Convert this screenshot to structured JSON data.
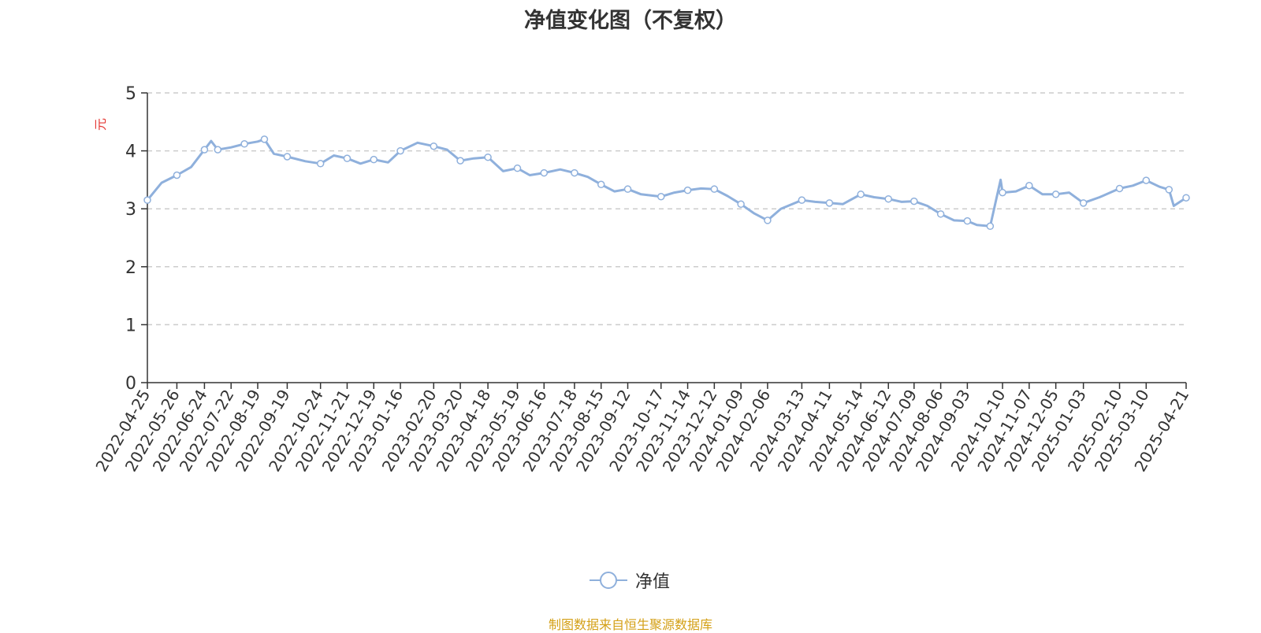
{
  "chart_data": {
    "type": "line",
    "title": "净值变化图（不复权）",
    "ylabel": "元",
    "ylim": [
      0,
      5
    ],
    "yticks": [
      "0",
      "1",
      "2",
      "3",
      "4",
      "5"
    ],
    "grid": true,
    "legend_placement": "bottom-center",
    "xticks": [
      "2022-04-25",
      "2022-05-26",
      "2022-06-24",
      "2022-07-22",
      "2022-08-19",
      "2022-09-19",
      "2022-10-24",
      "2022-11-21",
      "2022-12-19",
      "2023-01-16",
      "2023-02-20",
      "2023-03-20",
      "2023-04-18",
      "2023-05-19",
      "2023-06-16",
      "2023-07-18",
      "2023-08-15",
      "2023-09-12",
      "2023-10-17",
      "2023-11-14",
      "2023-12-12",
      "2024-01-09",
      "2024-02-06",
      "2024-03-13",
      "2024-04-11",
      "2024-05-14",
      "2024-06-12",
      "2024-07-09",
      "2024-08-06",
      "2024-09-03",
      "2024-10-10",
      "2024-11-07",
      "2024-12-05",
      "2025-01-03",
      "2025-02-10",
      "2025-03-10",
      "2025-04-21"
    ],
    "series": [
      {
        "name": "净值",
        "color": "#8fb0dc",
        "x": [
          "2022-04-25",
          "2022-05-10",
          "2022-05-26",
          "2022-06-10",
          "2022-06-24",
          "2022-07-01",
          "2022-07-08",
          "2022-07-22",
          "2022-08-05",
          "2022-08-19",
          "2022-08-26",
          "2022-09-05",
          "2022-09-19",
          "2022-10-08",
          "2022-10-24",
          "2022-11-07",
          "2022-11-21",
          "2022-12-05",
          "2022-12-19",
          "2023-01-03",
          "2023-01-16",
          "2023-02-03",
          "2023-02-20",
          "2023-03-06",
          "2023-03-20",
          "2023-04-03",
          "2023-04-18",
          "2023-05-04",
          "2023-05-19",
          "2023-06-01",
          "2023-06-16",
          "2023-07-03",
          "2023-07-18",
          "2023-08-01",
          "2023-08-15",
          "2023-08-29",
          "2023-09-12",
          "2023-09-26",
          "2023-10-17",
          "2023-10-31",
          "2023-11-14",
          "2023-11-28",
          "2023-12-12",
          "2023-12-26",
          "2024-01-09",
          "2024-01-23",
          "2024-02-06",
          "2024-02-20",
          "2024-03-13",
          "2024-03-27",
          "2024-04-11",
          "2024-04-25",
          "2024-05-14",
          "2024-05-28",
          "2024-06-12",
          "2024-06-26",
          "2024-07-09",
          "2024-07-23",
          "2024-08-06",
          "2024-08-20",
          "2024-09-03",
          "2024-09-13",
          "2024-09-27",
          "2024-10-08",
          "2024-10-10",
          "2024-10-24",
          "2024-11-07",
          "2024-11-21",
          "2024-12-05",
          "2024-12-19",
          "2025-01-03",
          "2025-01-20",
          "2025-02-10",
          "2025-02-24",
          "2025-03-10",
          "2025-03-24",
          "2025-04-03",
          "2025-04-08",
          "2025-04-21"
        ],
        "values": [
          3.15,
          3.45,
          3.58,
          3.72,
          4.02,
          4.17,
          4.02,
          4.06,
          4.12,
          4.16,
          4.2,
          3.95,
          3.9,
          3.82,
          3.78,
          3.92,
          3.87,
          3.78,
          3.85,
          3.8,
          4.0,
          4.14,
          4.08,
          4.02,
          3.83,
          3.87,
          3.89,
          3.65,
          3.7,
          3.58,
          3.62,
          3.68,
          3.62,
          3.55,
          3.42,
          3.3,
          3.34,
          3.25,
          3.21,
          3.28,
          3.32,
          3.35,
          3.34,
          3.22,
          3.08,
          2.92,
          2.8,
          3.0,
          3.15,
          3.12,
          3.1,
          3.08,
          3.25,
          3.2,
          3.17,
          3.12,
          3.13,
          3.05,
          2.91,
          2.8,
          2.79,
          2.72,
          2.7,
          3.5,
          3.28,
          3.3,
          3.4,
          3.25,
          3.25,
          3.28,
          3.1,
          3.2,
          3.35,
          3.4,
          3.49,
          3.38,
          3.33,
          3.05,
          3.19
        ]
      }
    ]
  },
  "legend": {
    "label": "净值"
  },
  "footer": {
    "source": "制图数据来自恒生聚源数据库"
  }
}
